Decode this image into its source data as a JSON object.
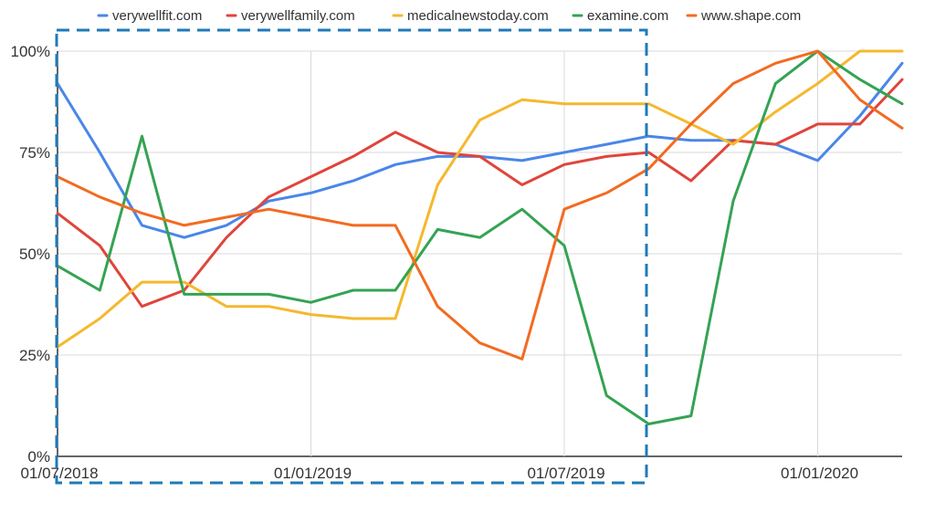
{
  "chart_data": {
    "type": "line",
    "x": [
      "2018-07",
      "2018-08",
      "2018-09",
      "2018-10",
      "2018-11",
      "2018-12",
      "2019-01",
      "2019-02",
      "2019-03",
      "2019-04",
      "2019-05",
      "2019-06",
      "2019-07",
      "2019-08",
      "2019-09",
      "2019-10",
      "2019-11",
      "2019-12",
      "2020-01",
      "2020-02",
      "2020-03"
    ],
    "x_tick_labels": [
      "01/07/2018",
      "01/01/2019",
      "01/07/2019",
      "01/01/2020"
    ],
    "x_tick_dates": [
      "2018-07",
      "2019-01",
      "2019-07",
      "2020-01"
    ],
    "y_tick_labels": [
      "0%",
      "25%",
      "50%",
      "75%",
      "100%"
    ],
    "y_tick_values": [
      0,
      25,
      50,
      75,
      100
    ],
    "ylim": [
      0,
      100
    ],
    "grid": true,
    "legend_position": "top",
    "series": [
      {
        "name": "verywellfit.com",
        "color": "#4a86e8",
        "values": [
          92,
          75,
          57,
          54,
          57,
          63,
          65,
          68,
          72,
          74,
          74,
          73,
          75,
          77,
          79,
          78,
          78,
          77,
          73,
          84,
          97
        ]
      },
      {
        "name": "verywellfamily.com",
        "color": "#e0453a",
        "values": [
          60,
          52,
          37,
          41,
          54,
          64,
          69,
          74,
          80,
          75,
          74,
          67,
          72,
          74,
          75,
          68,
          78,
          77,
          82,
          82,
          93
        ]
      },
      {
        "name": "medicalnewstoday.com",
        "color": "#f5b82e",
        "values": [
          27,
          34,
          43,
          43,
          37,
          37,
          35,
          34,
          34,
          67,
          83,
          88,
          87,
          87,
          87,
          82,
          77,
          85,
          92,
          100,
          100
        ]
      },
      {
        "name": "examine.com",
        "color": "#34a353",
        "values": [
          47,
          41,
          79,
          40,
          40,
          40,
          38,
          41,
          41,
          56,
          54,
          61,
          52,
          15,
          8,
          10,
          63,
          92,
          100,
          93,
          87
        ]
      },
      {
        "name": "www.shape.com",
        "color": "#f26b21",
        "values": [
          69,
          64,
          60,
          57,
          59,
          61,
          59,
          57,
          57,
          37,
          28,
          24,
          61,
          65,
          71,
          82,
          92,
          97,
          100,
          88,
          81
        ]
      }
    ],
    "annotation_box_color": "#1f7ab8"
  }
}
